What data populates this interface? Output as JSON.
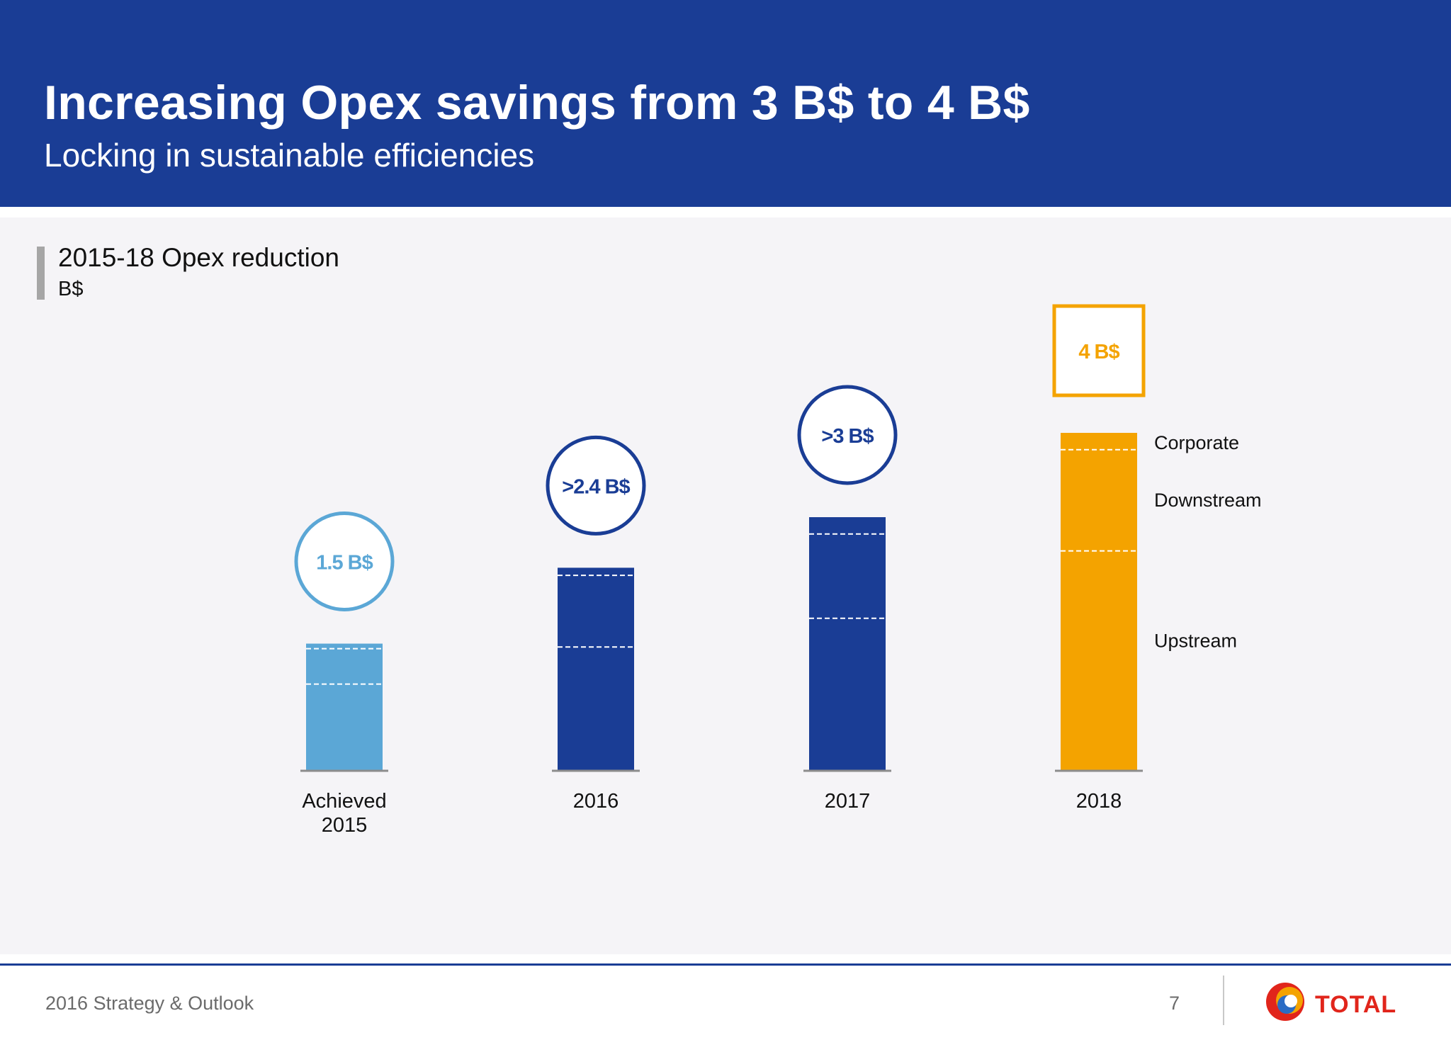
{
  "header": {
    "title": "Increasing Opex savings from 3 B$ to 4 B$",
    "subtitle": "Locking in sustainable efficiencies"
  },
  "chart_data": {
    "type": "bar",
    "title": "2015-18 Opex reduction",
    "unit": "B$",
    "categories": [
      {
        "lines": [
          "Achieved",
          "2015"
        ]
      },
      {
        "lines": [
          "2016"
        ]
      },
      {
        "lines": [
          "2017"
        ]
      },
      {
        "lines": [
          "2018"
        ]
      }
    ],
    "totals": [
      1.5,
      2.4,
      3.0,
      4.0
    ],
    "total_labels": [
      "1.5 B$",
      ">2.4 B$",
      ">3 B$",
      "4 B$"
    ],
    "label_shapes": [
      "circle",
      "circle",
      "circle",
      "square"
    ],
    "segments_order": [
      "Upstream",
      "Downstream",
      "Corporate"
    ],
    "segments": [
      {
        "Upstream": 1.02,
        "Downstream": 0.42,
        "Corporate": 0.06
      },
      {
        "Upstream": 1.46,
        "Downstream": 0.85,
        "Corporate": 0.13
      },
      {
        "Upstream": 1.8,
        "Downstream": 1.0,
        "Corporate": 0.2
      },
      {
        "Upstream": 2.6,
        "Downstream": 1.2,
        "Corporate": 0.2
      }
    ],
    "legend_labels": [
      "Corporate",
      "Downstream",
      "Upstream"
    ],
    "legend_placement": "right of last bar",
    "colors": [
      "#5ba7d6",
      "#1a3d95",
      "#1a3d95",
      "#f4a300"
    ],
    "ylim": [
      0,
      4
    ],
    "grid": false
  },
  "footer": {
    "text": "2016 Strategy & Outlook",
    "page": "7",
    "logo_text": "TOTAL"
  }
}
